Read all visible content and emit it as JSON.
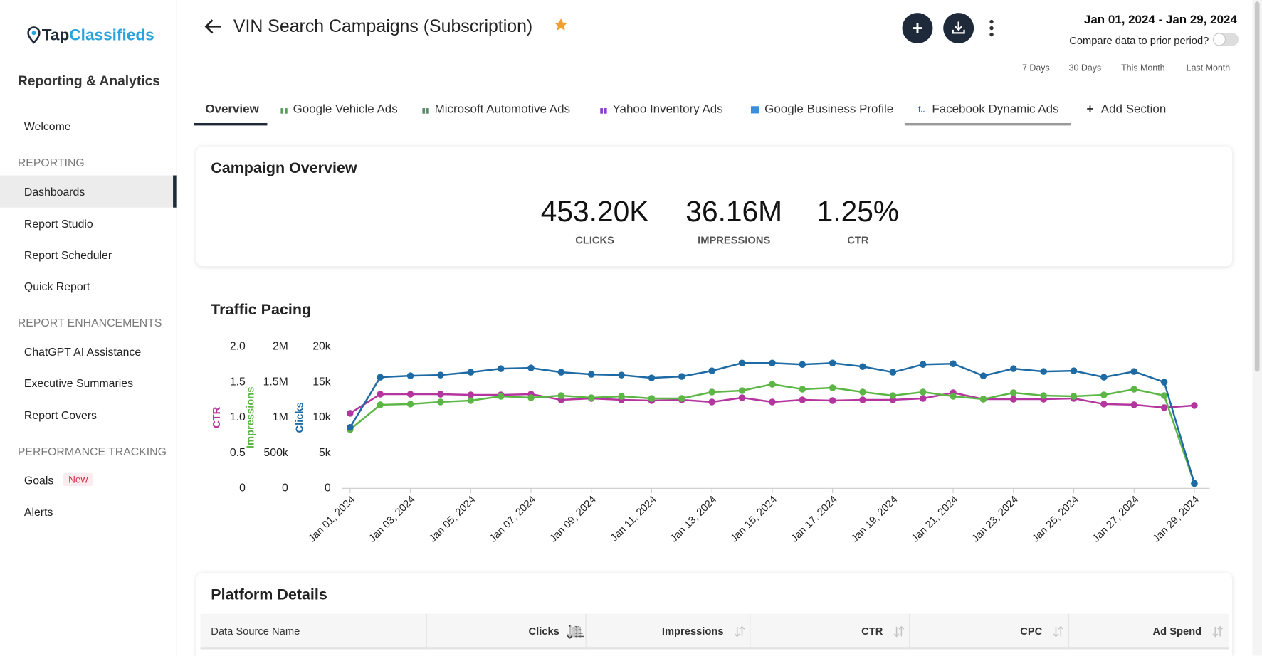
{
  "sidebar": {
    "logo_a": "Tap",
    "logo_b": "Classifieds",
    "title": "Reporting & Analytics",
    "welcome": "Welcome",
    "badge": "New",
    "sections": [
      {
        "heading": "REPORTING",
        "items": [
          "Dashboards",
          "Report Studio",
          "Report Scheduler",
          "Quick Report"
        ]
      },
      {
        "heading": "REPORT ENHANCEMENTS",
        "items": [
          "ChatGPT AI Assistance",
          "Executive Summaries",
          "Report Covers"
        ]
      },
      {
        "heading": "PERFORMANCE TRACKING",
        "items": [
          "Goals",
          "Alerts"
        ]
      }
    ]
  },
  "header": {
    "title": "VIN Search Campaigns (Subscription)",
    "date_range": "Jan 01, 2024 - Jan 29, 2024",
    "compare_label": "Compare data to prior period?",
    "quick_ranges": [
      "7 Days",
      "30 Days",
      "This Month",
      "Last Month"
    ]
  },
  "tabs": [
    "Overview",
    "Google Vehicle Ads",
    "Microsoft Automotive Ads",
    "Yahoo Inventory Ads",
    "Google Business Profile",
    "Facebook Dynamic Ads"
  ],
  "add_section": "Add Section",
  "overview": {
    "title": "Campaign Overview",
    "kpis": [
      {
        "value": "453.20K",
        "label": "CLICKS"
      },
      {
        "value": "36.16M",
        "label": "IMPRESSIONS"
      },
      {
        "value": "1.25%",
        "label": "CTR"
      }
    ]
  },
  "chart_data": {
    "type": "line",
    "title": "Traffic Pacing",
    "categories": [
      "Jan 01, 2024",
      null,
      "Jan 03, 2024",
      null,
      "Jan 05, 2024",
      null,
      "Jan 07, 2024",
      null,
      "Jan 09, 2024",
      null,
      "Jan 11, 2024",
      null,
      "Jan 13, 2024",
      null,
      "Jan 15, 2024",
      null,
      "Jan 17, 2024",
      null,
      "Jan 19, 2024",
      null,
      "Jan 21, 2024",
      null,
      "Jan 23, 2024",
      null,
      "Jan 25, 2024",
      null,
      "Jan 27, 2024",
      null,
      "Jan 29, 2024"
    ],
    "ylim": [
      0,
      2
    ],
    "yticks": [
      0,
      0.5,
      {
        "value": 1,
        "label": "1.0"
      },
      1.5,
      {
        "value": 2,
        "label": "2.0"
      }
    ],
    "y2lim": [
      0,
      2000000
    ],
    "y2ticks": [
      0,
      {
        "value": 500000,
        "label": "500k"
      },
      {
        "value": 1000000,
        "label": "1M"
      },
      {
        "value": 1500000,
        "label": "1.5M"
      },
      {
        "value": 2000000,
        "label": "2M"
      }
    ],
    "y3lim": [
      0,
      20000
    ],
    "y3ticks": [
      0,
      {
        "value": 5000,
        "label": "5k"
      },
      {
        "value": 10000,
        "label": "10k"
      },
      {
        "value": 15000,
        "label": "15k"
      },
      {
        "value": 20000,
        "label": "20k"
      }
    ],
    "grid": false,
    "series": [
      {
        "name": "CTR",
        "color": "#b5359f",
        "axis": "y",
        "values": [
          1.06,
          1.33,
          1.33,
          1.33,
          1.32,
          1.32,
          1.33,
          1.25,
          1.27,
          1.25,
          1.24,
          1.25,
          1.22,
          1.28,
          1.22,
          1.25,
          1.24,
          1.25,
          1.25,
          1.27,
          1.35,
          1.26,
          1.26,
          1.26,
          1.27,
          1.19,
          1.18,
          1.14,
          1.17
        ]
      },
      {
        "name": "Impressions",
        "color": "#5cb646",
        "axis": "y2",
        "values": [
          830000,
          1180000,
          1190000,
          1220000,
          1240000,
          1300000,
          1280000,
          1310000,
          1280000,
          1300000,
          1270000,
          1270000,
          1360000,
          1380000,
          1470000,
          1400000,
          1420000,
          1360000,
          1310000,
          1360000,
          1300000,
          1260000,
          1350000,
          1310000,
          1300000,
          1320000,
          1400000,
          1310000,
          70000
        ]
      },
      {
        "name": "Clicks",
        "color": "#1d6aa5",
        "axis": "y3",
        "values": [
          8600,
          15700,
          15900,
          16000,
          16400,
          16900,
          17000,
          16400,
          16100,
          16000,
          15600,
          15800,
          16600,
          17700,
          17700,
          17500,
          17700,
          17200,
          16400,
          17500,
          17600,
          15900,
          16900,
          16500,
          16600,
          15700,
          16500,
          15000,
          700
        ]
      }
    ]
  },
  "table": {
    "title": "Platform Details",
    "columns": [
      "Data Source Name",
      "Clicks",
      "Impressions",
      "CTR",
      "CPC",
      "Ad Spend"
    ]
  }
}
